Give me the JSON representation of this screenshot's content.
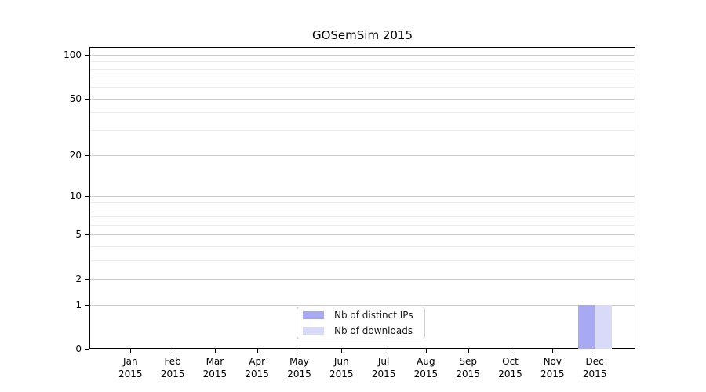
{
  "title": "GOSemSim 2015",
  "colors": {
    "distinct_ips": "#a7a9f2",
    "downloads": "#d8daf8",
    "grid_major": "#cccccc",
    "grid_minor": "#ebebeb",
    "axis": "#000000",
    "legend_border": "#cccccc",
    "background": "#ffffff"
  },
  "legend": {
    "items": [
      {
        "label": "Nb of distinct IPs",
        "color_key": "distinct_ips"
      },
      {
        "label": "Nb of downloads",
        "color_key": "downloads"
      }
    ]
  },
  "chart_data": {
    "type": "bar",
    "title": "GOSemSim 2015",
    "categories": [
      "Jan",
      "Feb",
      "Mar",
      "Apr",
      "May",
      "Jun",
      "Jul",
      "Aug",
      "Sep",
      "Oct",
      "Nov",
      "Dec"
    ],
    "x_year": "2015",
    "series": [
      {
        "name": "Nb of distinct IPs",
        "color": "#a7a9f2",
        "values": [
          0,
          0,
          0,
          0,
          0,
          0,
          0,
          0,
          0,
          0,
          0,
          1
        ]
      },
      {
        "name": "Nb of downloads",
        "color": "#d8daf8",
        "values": [
          0,
          0,
          0,
          0,
          0,
          0,
          0,
          0,
          0,
          0,
          0,
          1
        ]
      }
    ],
    "y_scale": "log1p",
    "ylim": [
      0,
      113
    ],
    "y_ticks": [
      0,
      1,
      2,
      5,
      10,
      20,
      50,
      100
    ],
    "y_minor_gridlines": [
      3,
      4,
      6,
      7,
      8,
      9,
      30,
      40,
      60,
      70,
      80,
      90
    ],
    "grid": "horizontal",
    "legend_position": "lower center",
    "xlabel": "",
    "ylabel": ""
  }
}
